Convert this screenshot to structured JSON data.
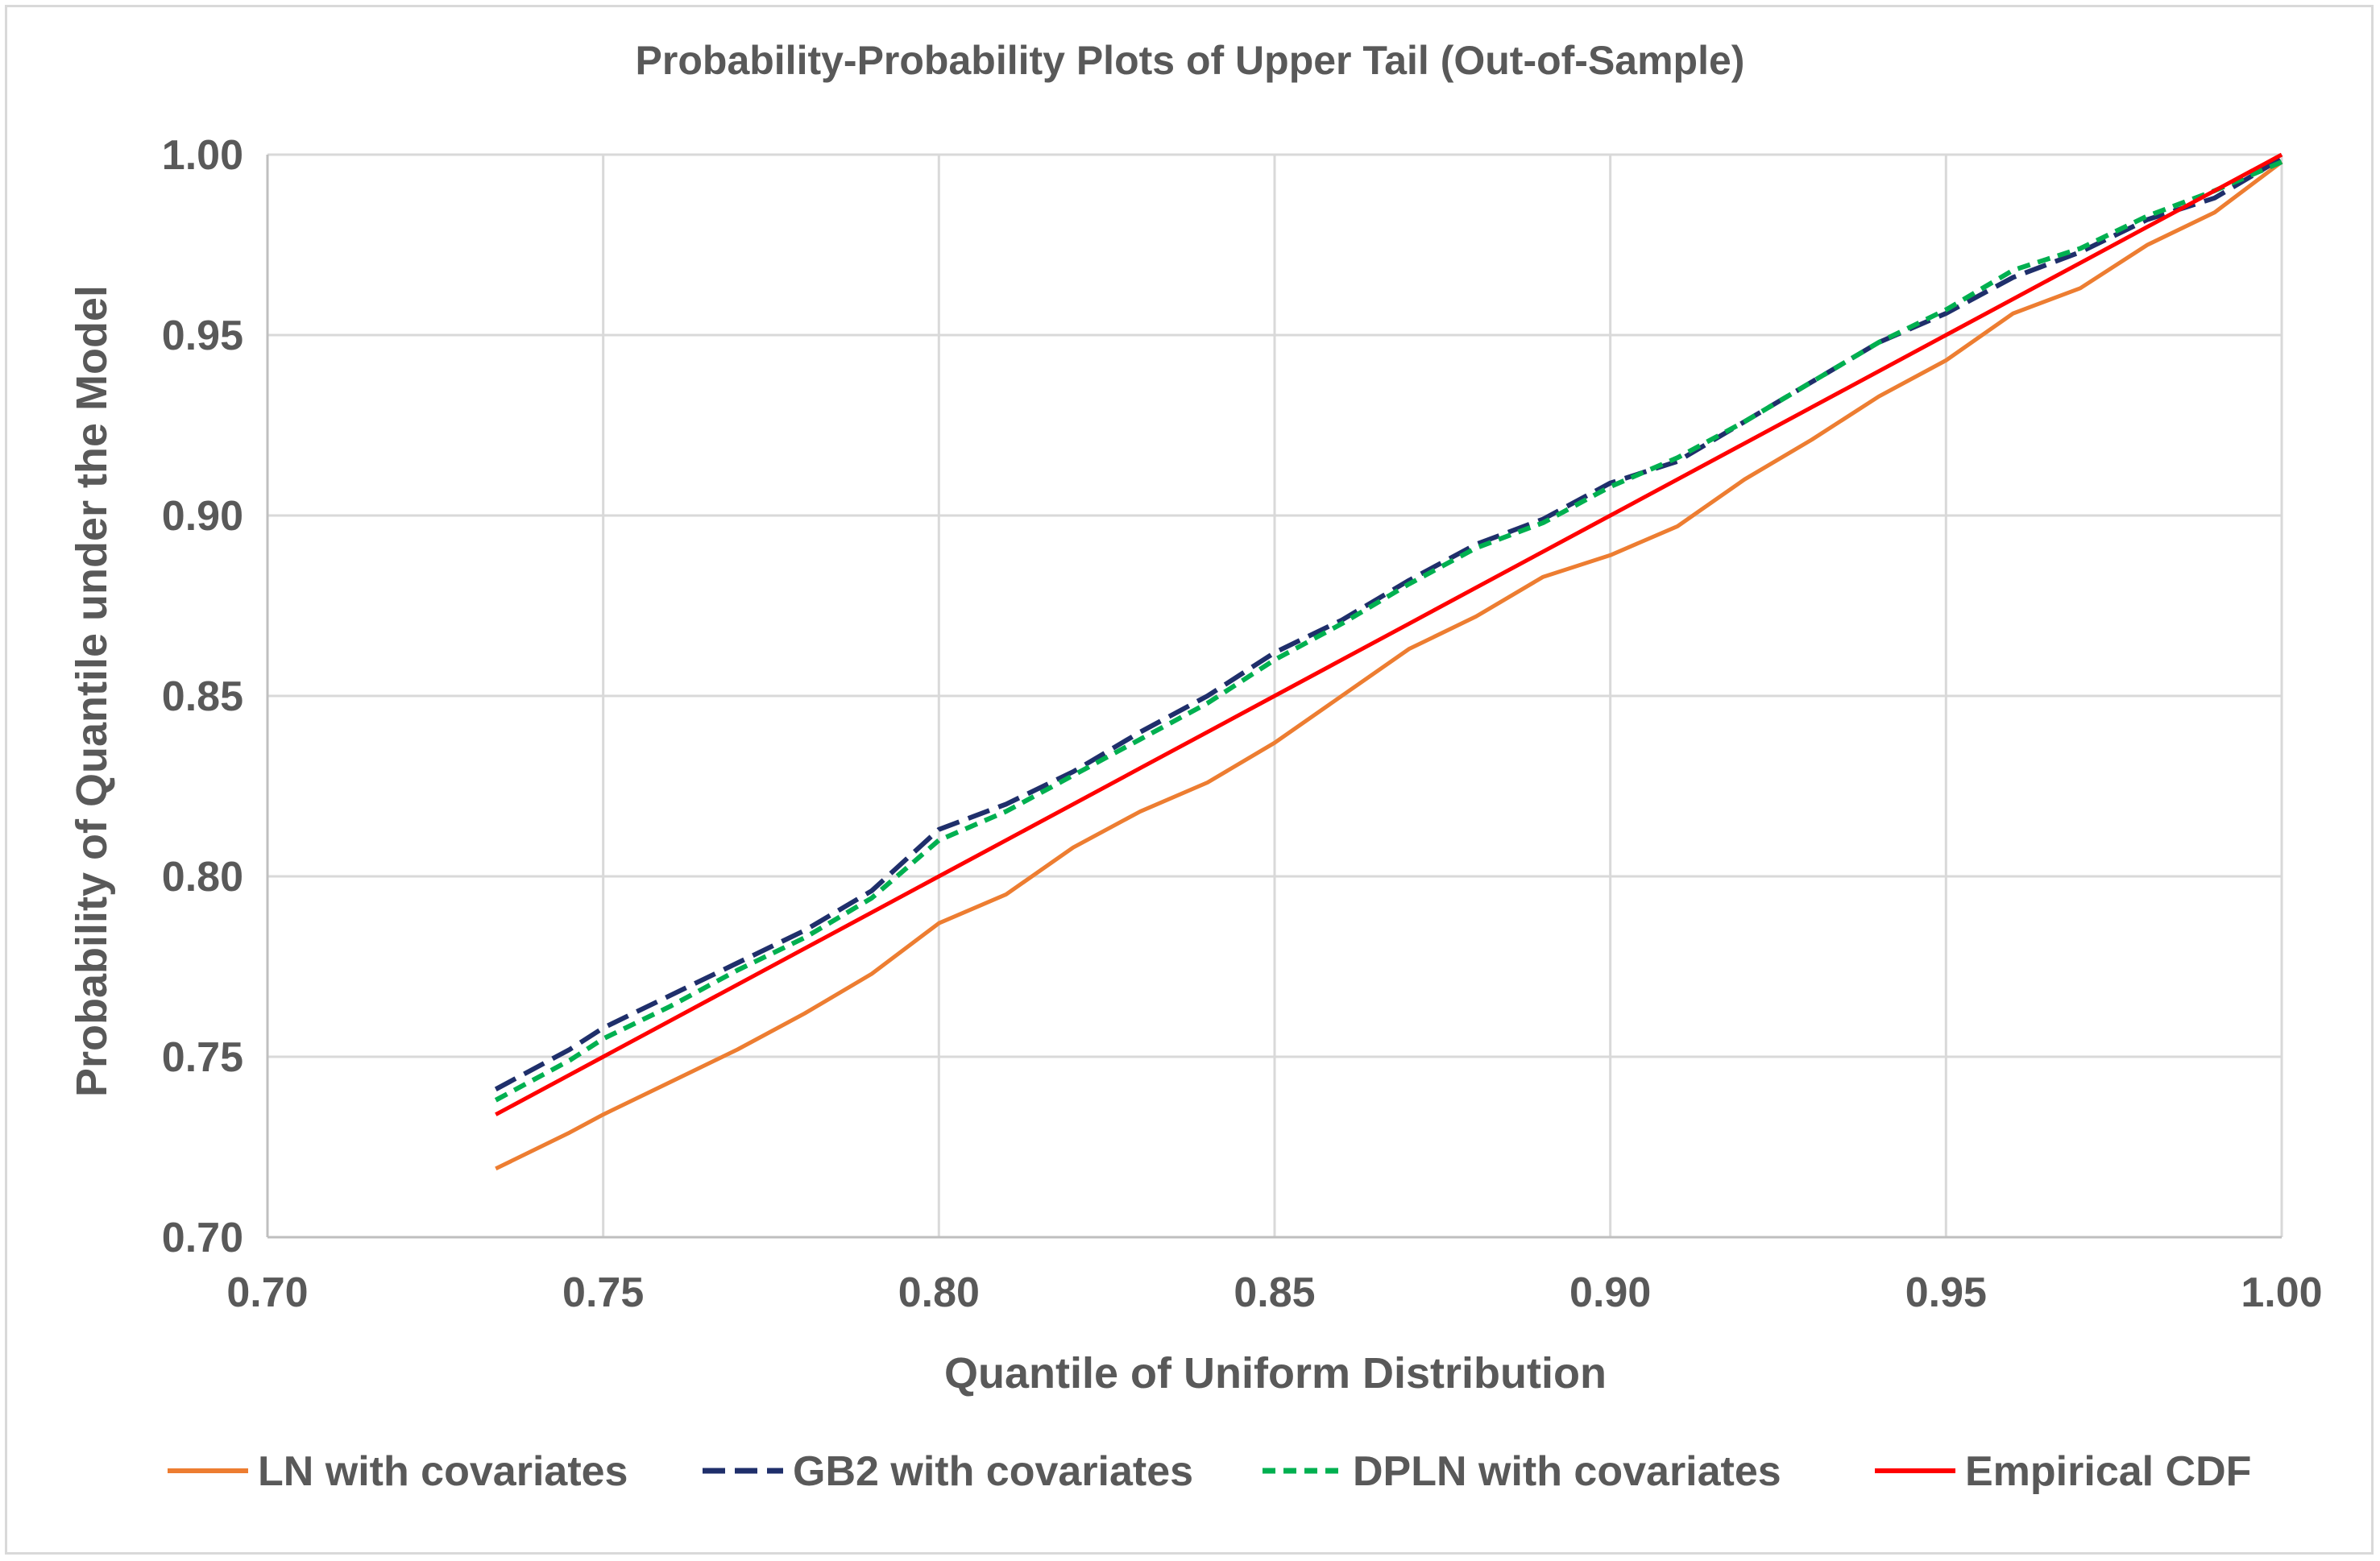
{
  "chart_data": {
    "type": "line",
    "title": "Probability-Probability Plots of Upper Tail (Out-of-Sample)",
    "xlabel": "Quantile of Uniform Distribution",
    "ylabel": "Probability of Quantile under the Model",
    "xlim": [
      0.7,
      1.0
    ],
    "ylim": [
      0.7,
      1.0
    ],
    "grid": true,
    "legend_position": "bottom",
    "x_ticks": [
      "0.70",
      "0.75",
      "0.80",
      "0.85",
      "0.90",
      "0.95",
      "1.00"
    ],
    "y_ticks": [
      "0.70",
      "0.75",
      "0.80",
      "0.85",
      "0.90",
      "0.95",
      "1.00"
    ],
    "x": [
      0.734,
      0.745,
      0.75,
      0.76,
      0.77,
      0.78,
      0.79,
      0.8,
      0.81,
      0.82,
      0.83,
      0.84,
      0.85,
      0.86,
      0.87,
      0.88,
      0.89,
      0.9,
      0.91,
      0.92,
      0.93,
      0.94,
      0.95,
      0.96,
      0.97,
      0.98,
      0.99,
      1.0
    ],
    "series": [
      {
        "name": "LN with covariates",
        "color": "#ed7d31",
        "style": "solid",
        "values": [
          0.719,
          0.729,
          0.734,
          0.743,
          0.752,
          0.762,
          0.773,
          0.787,
          0.795,
          0.808,
          0.818,
          0.826,
          0.837,
          0.85,
          0.863,
          0.872,
          0.883,
          0.889,
          0.897,
          0.91,
          0.921,
          0.933,
          0.943,
          0.956,
          0.963,
          0.975,
          0.984,
          0.998
        ]
      },
      {
        "name": "GB2 with covariates",
        "color": "#1f2f6b",
        "style": "dashed",
        "values": [
          0.741,
          0.752,
          0.758,
          0.767,
          0.776,
          0.785,
          0.796,
          0.813,
          0.82,
          0.829,
          0.84,
          0.85,
          0.862,
          0.871,
          0.882,
          0.892,
          0.899,
          0.909,
          0.915,
          0.926,
          0.937,
          0.948,
          0.956,
          0.966,
          0.973,
          0.982,
          0.988,
          0.999
        ]
      },
      {
        "name": "DPLN with covariates",
        "color": "#00b050",
        "style": "dashed",
        "values": [
          0.738,
          0.749,
          0.755,
          0.764,
          0.774,
          0.783,
          0.794,
          0.81,
          0.818,
          0.828,
          0.838,
          0.848,
          0.86,
          0.87,
          0.881,
          0.891,
          0.898,
          0.908,
          0.916,
          0.926,
          0.937,
          0.948,
          0.957,
          0.968,
          0.974,
          0.983,
          0.99,
          0.998
        ]
      },
      {
        "name": "Empirical CDF",
        "color": "#ff0000",
        "style": "solid",
        "values": [
          0.734,
          0.745,
          0.75,
          0.76,
          0.77,
          0.78,
          0.79,
          0.8,
          0.81,
          0.82,
          0.83,
          0.84,
          0.85,
          0.86,
          0.87,
          0.88,
          0.89,
          0.9,
          0.91,
          0.92,
          0.93,
          0.94,
          0.95,
          0.96,
          0.97,
          0.98,
          0.99,
          1.0
        ]
      }
    ]
  }
}
